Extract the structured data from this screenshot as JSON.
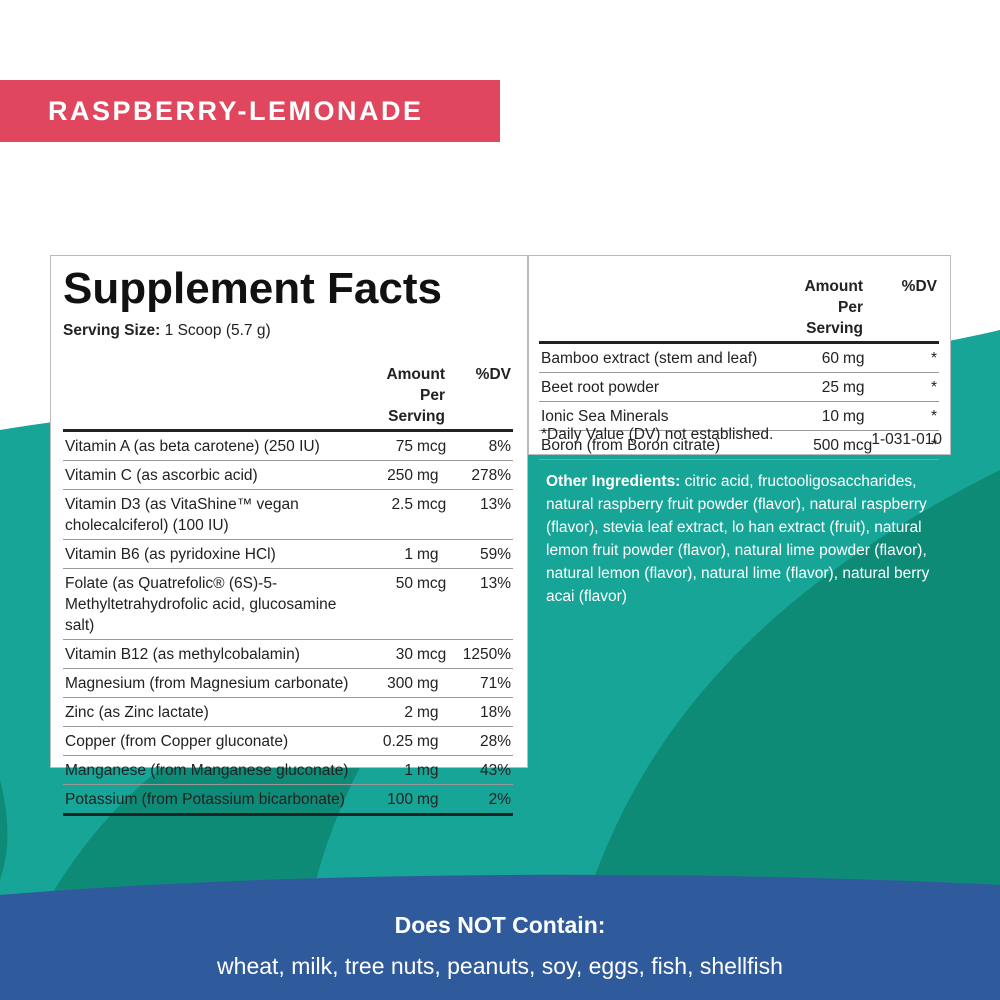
{
  "banner": "RASPBERRY-LEMONADE",
  "facts": {
    "title": "Supplement Facts",
    "serving_label": "Serving Size:",
    "serving_value": "1 Scoop (5.7 g)",
    "header": {
      "amount": "Amount Per Serving",
      "dv": "%DV"
    },
    "rows": [
      {
        "name": "Vitamin A (as beta carotene) (250 IU)",
        "amount": "75",
        "unit": "mcg",
        "dv": "8%"
      },
      {
        "name": "Vitamin C (as ascorbic acid)",
        "amount": "250",
        "unit": "mg",
        "dv": "278%"
      },
      {
        "name": "Vitamin D3 (as VitaShine™ vegan cholecalciferol) (100 IU)",
        "amount": "2.5",
        "unit": "mcg",
        "dv": "13%"
      },
      {
        "name": "Vitamin B6 (as pyridoxine HCl)",
        "amount": "1",
        "unit": "mg",
        "dv": "59%"
      },
      {
        "name": "Folate (as Quatrefolic® (6S)-5-Methyltetrahydrofolic acid, glucosamine salt)",
        "amount": "50",
        "unit": "mcg",
        "dv": "13%"
      },
      {
        "name": "Vitamin B12 (as methylcobalamin)",
        "amount": "30",
        "unit": "mcg",
        "dv": "1250%"
      },
      {
        "name": "Magnesium (from Magnesium carbonate)",
        "amount": "300",
        "unit": "mg",
        "dv": "71%"
      },
      {
        "name": "Zinc (as Zinc lactate)",
        "amount": "2",
        "unit": "mg",
        "dv": "18%"
      },
      {
        "name": "Copper (from Copper gluconate)",
        "amount": "0.25",
        "unit": "mg",
        "dv": "28%"
      },
      {
        "name": "Manganese (from Manganese gluconate)",
        "amount": "1",
        "unit": "mg",
        "dv": "43%"
      },
      {
        "name": "Potassium (from Potassium bicarbonate)",
        "amount": "100",
        "unit": "mg",
        "dv": "2%"
      }
    ]
  },
  "facts2": {
    "header": {
      "amount": "Amount Per Serving",
      "dv": "%DV"
    },
    "rows": [
      {
        "name": "Bamboo extract (stem and leaf)",
        "amount": "60",
        "unit": "mg",
        "dv": "*"
      },
      {
        "name": "Beet root powder",
        "amount": "25",
        "unit": "mg",
        "dv": "*"
      },
      {
        "name": "Ionic Sea Minerals",
        "amount": "10",
        "unit": "mg",
        "dv": "*"
      },
      {
        "name": "Boron (from Boron citrate)",
        "amount": "500",
        "unit": "mcg",
        "dv": "*"
      }
    ],
    "footnote": "*Daily Value (DV) not established.",
    "code": "1-031-010"
  },
  "other": {
    "label": "Other Ingredients:",
    "text": "citric acid, fructooligosaccharides, natural raspberry fruit powder (flavor), natural raspberry (flavor), stevia leaf extract, lo han extract (fruit), natural lemon fruit powder (flavor), natural lime powder (flavor), natural lemon (flavor), natural lime (flavor), natural berry acai (flavor)"
  },
  "allergen": {
    "title": "Does NOT Contain:",
    "list": "wheat, milk, tree nuts, peanuts, soy, eggs, fish, shellfish"
  }
}
